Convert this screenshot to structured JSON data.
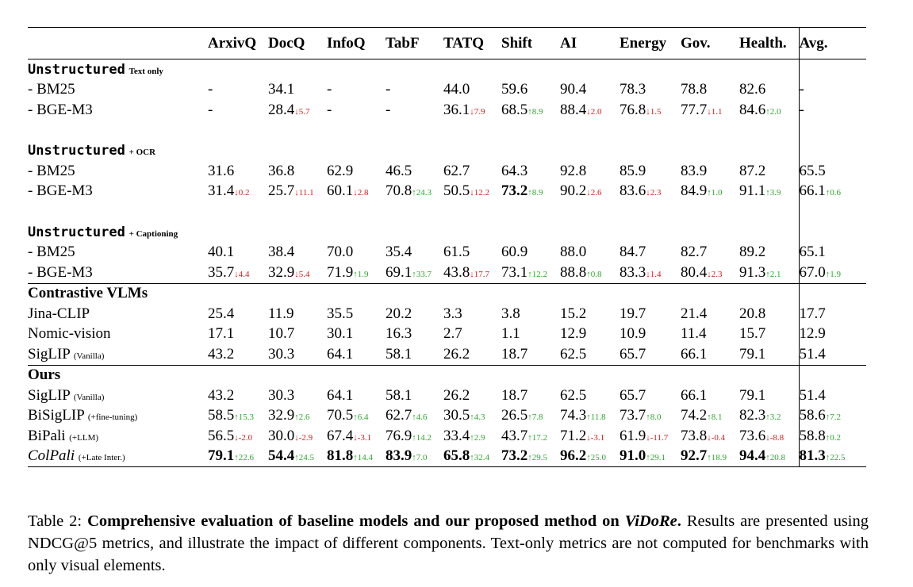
{
  "table": {
    "columns": [
      "ArxivQ",
      "DocQ",
      "InfoQ",
      "TabF",
      "TATQ",
      "Shift",
      "AI",
      "Energy",
      "Gov.",
      "Health.",
      "Avg."
    ],
    "sections": [
      {
        "title": "Unstructured",
        "title_suffix": "Text only",
        "style": "mono",
        "spacer_before": false,
        "rule_before": false,
        "rows": [
          {
            "label": "- BM25",
            "cells": [
              {
                "v": "-"
              },
              {
                "v": "34.1"
              },
              {
                "v": "-"
              },
              {
                "v": "-"
              },
              {
                "v": "44.0"
              },
              {
                "v": "59.6"
              },
              {
                "v": "90.4"
              },
              {
                "v": "78.3"
              },
              {
                "v": "78.8"
              },
              {
                "v": "82.6"
              },
              {
                "v": "-"
              }
            ]
          },
          {
            "label": "- BGE-M3",
            "cells": [
              {
                "v": "-"
              },
              {
                "v": "28.4",
                "d": "↓5.7",
                "t": "dn"
              },
              {
                "v": "-"
              },
              {
                "v": "-"
              },
              {
                "v": "36.1",
                "d": "↓7.9",
                "t": "dn"
              },
              {
                "v": "68.5",
                "d": "↑8.9",
                "t": "up"
              },
              {
                "v": "88.4",
                "d": "↓2.0",
                "t": "dn"
              },
              {
                "v": "76.8",
                "d": "↓1.5",
                "t": "dn"
              },
              {
                "v": "77.7",
                "d": "↓1.1",
                "t": "dn"
              },
              {
                "v": "84.6",
                "d": "↑2.0",
                "t": "up"
              },
              {
                "v": "-"
              }
            ]
          }
        ]
      },
      {
        "title": "Unstructured",
        "title_suffix": "+ OCR",
        "style": "mono",
        "spacer_before": true,
        "rule_before": false,
        "rows": [
          {
            "label": "- BM25",
            "cells": [
              {
                "v": "31.6"
              },
              {
                "v": "36.8"
              },
              {
                "v": "62.9"
              },
              {
                "v": "46.5"
              },
              {
                "v": "62.7"
              },
              {
                "v": "64.3"
              },
              {
                "v": "92.8"
              },
              {
                "v": "85.9"
              },
              {
                "v": "83.9"
              },
              {
                "v": "87.2"
              },
              {
                "v": "65.5"
              }
            ]
          },
          {
            "label": "- BGE-M3",
            "cells": [
              {
                "v": "31.4",
                "d": "↓0.2",
                "t": "dn"
              },
              {
                "v": "25.7",
                "d": "↓11.1",
                "t": "dn"
              },
              {
                "v": "60.1",
                "d": "↓2.8",
                "t": "dn"
              },
              {
                "v": "70.8",
                "d": "↑24.3",
                "t": "up"
              },
              {
                "v": "50.5",
                "d": "↓12.2",
                "t": "dn"
              },
              {
                "v": "73.2",
                "d": "↑8.9",
                "t": "up",
                "b": true
              },
              {
                "v": "90.2",
                "d": "↓2.6",
                "t": "dn"
              },
              {
                "v": "83.6",
                "d": "↓2.3",
                "t": "dn"
              },
              {
                "v": "84.9",
                "d": "↑1.0",
                "t": "up"
              },
              {
                "v": "91.1",
                "d": "↑3.9",
                "t": "up"
              },
              {
                "v": "66.1",
                "d": "↑0.6",
                "t": "up"
              }
            ]
          }
        ]
      },
      {
        "title": "Unstructured",
        "title_suffix": "+ Captioning",
        "style": "mono",
        "spacer_before": true,
        "rule_before": false,
        "rows": [
          {
            "label": "- BM25",
            "cells": [
              {
                "v": "40.1"
              },
              {
                "v": "38.4"
              },
              {
                "v": "70.0"
              },
              {
                "v": "35.4"
              },
              {
                "v": "61.5"
              },
              {
                "v": "60.9"
              },
              {
                "v": "88.0"
              },
              {
                "v": "84.7"
              },
              {
                "v": "82.7"
              },
              {
                "v": "89.2"
              },
              {
                "v": "65.1"
              }
            ]
          },
          {
            "label": "- BGE-M3",
            "cells": [
              {
                "v": "35.7",
                "d": "↓4.4",
                "t": "dn"
              },
              {
                "v": "32.9",
                "d": "↓5.4",
                "t": "dn"
              },
              {
                "v": "71.9",
                "d": "↑1.9",
                "t": "up"
              },
              {
                "v": "69.1",
                "d": "↑33.7",
                "t": "up"
              },
              {
                "v": "43.8",
                "d": "↓17.7",
                "t": "dn"
              },
              {
                "v": "73.1",
                "d": "↑12.2",
                "t": "up"
              },
              {
                "v": "88.8",
                "d": "↑0.8",
                "t": "up"
              },
              {
                "v": "83.3",
                "d": "↓1.4",
                "t": "dn"
              },
              {
                "v": "80.4",
                "d": "↓2.3",
                "t": "dn"
              },
              {
                "v": "91.3",
                "d": "↑2.1",
                "t": "up"
              },
              {
                "v": "67.0",
                "d": "↑1.9",
                "t": "up"
              }
            ]
          }
        ]
      },
      {
        "title": "Contrastive VLMs",
        "title_suffix": "",
        "style": "bold",
        "spacer_before": false,
        "rule_before": true,
        "rows": [
          {
            "label": "Jina-CLIP",
            "cells": [
              {
                "v": "25.4"
              },
              {
                "v": "11.9"
              },
              {
                "v": "35.5"
              },
              {
                "v": "20.2"
              },
              {
                "v": "3.3"
              },
              {
                "v": "3.8"
              },
              {
                "v": "15.2"
              },
              {
                "v": "19.7"
              },
              {
                "v": "21.4"
              },
              {
                "v": "20.8"
              },
              {
                "v": "17.7"
              }
            ]
          },
          {
            "label": "Nomic-vision",
            "cells": [
              {
                "v": "17.1"
              },
              {
                "v": "10.7"
              },
              {
                "v": "30.1"
              },
              {
                "v": "16.3"
              },
              {
                "v": "2.7"
              },
              {
                "v": "1.1"
              },
              {
                "v": "12.9"
              },
              {
                "v": "10.9"
              },
              {
                "v": "11.4"
              },
              {
                "v": "15.7"
              },
              {
                "v": "12.9"
              }
            ]
          },
          {
            "label": "SigLIP",
            "note": "(Vanilla)",
            "cells": [
              {
                "v": "43.2"
              },
              {
                "v": "30.3"
              },
              {
                "v": "64.1"
              },
              {
                "v": "58.1"
              },
              {
                "v": "26.2"
              },
              {
                "v": "18.7"
              },
              {
                "v": "62.5"
              },
              {
                "v": "65.7"
              },
              {
                "v": "66.1"
              },
              {
                "v": "79.1"
              },
              {
                "v": "51.4"
              }
            ]
          }
        ]
      },
      {
        "title": "Ours",
        "title_suffix": "",
        "style": "bold",
        "spacer_before": false,
        "rule_before": true,
        "rows": [
          {
            "label": "SigLIP",
            "note": "(Vanilla)",
            "cells": [
              {
                "v": "43.2"
              },
              {
                "v": "30.3"
              },
              {
                "v": "64.1"
              },
              {
                "v": "58.1"
              },
              {
                "v": "26.2"
              },
              {
                "v": "18.7"
              },
              {
                "v": "62.5"
              },
              {
                "v": "65.7"
              },
              {
                "v": "66.1"
              },
              {
                "v": "79.1"
              },
              {
                "v": "51.4"
              }
            ]
          },
          {
            "label": "BiSigLIP",
            "note": "(+fine-tuning)",
            "cells": [
              {
                "v": "58.5",
                "d": "↑15.3",
                "t": "up"
              },
              {
                "v": "32.9",
                "d": "↑2.6",
                "t": "up"
              },
              {
                "v": "70.5",
                "d": "↑6.4",
                "t": "up"
              },
              {
                "v": "62.7",
                "d": "↑4.6",
                "t": "up"
              },
              {
                "v": "30.5",
                "d": "↑4.3",
                "t": "up"
              },
              {
                "v": "26.5",
                "d": "↑7.8",
                "t": "up"
              },
              {
                "v": "74.3",
                "d": "↑11.8",
                "t": "up"
              },
              {
                "v": "73.7",
                "d": "↑8.0",
                "t": "up"
              },
              {
                "v": "74.2",
                "d": "↑8.1",
                "t": "up"
              },
              {
                "v": "82.3",
                "d": "↑3.2",
                "t": "up"
              },
              {
                "v": "58.6",
                "d": "↑7.2",
                "t": "up"
              }
            ]
          },
          {
            "label": "BiPali",
            "note": "(+LLM)",
            "cells": [
              {
                "v": "56.5",
                "d": "↓-2.0",
                "t": "dn"
              },
              {
                "v": "30.0",
                "d": "↓-2.9",
                "t": "dn"
              },
              {
                "v": "67.4",
                "d": "↓-3.1",
                "t": "dn"
              },
              {
                "v": "76.9",
                "d": "↑14.2",
                "t": "up"
              },
              {
                "v": "33.4",
                "d": "↑2.9",
                "t": "up"
              },
              {
                "v": "43.7",
                "d": "↑17.2",
                "t": "up"
              },
              {
                "v": "71.2",
                "d": "↓-3.1",
                "t": "dn"
              },
              {
                "v": "61.9",
                "d": "↓-11.7",
                "t": "dn"
              },
              {
                "v": "73.8",
                "d": "↓-0.4",
                "t": "dn"
              },
              {
                "v": "73.6",
                "d": "↓-8.8",
                "t": "dn"
              },
              {
                "v": "58.8",
                "d": "↑0.2",
                "t": "up"
              }
            ]
          },
          {
            "label": "ColPali",
            "note": "(+Late Inter.)",
            "italic": true,
            "last": true,
            "cells": [
              {
                "v": "79.1",
                "d": "↑22.6",
                "t": "up",
                "b": true
              },
              {
                "v": "54.4",
                "d": "↑24.5",
                "t": "up",
                "b": true
              },
              {
                "v": "81.8",
                "d": "↑14.4",
                "t": "up",
                "b": true
              },
              {
                "v": "83.9",
                "d": "↑7.0",
                "t": "up",
                "b": true
              },
              {
                "v": "65.8",
                "d": "↑32.4",
                "t": "up",
                "b": true
              },
              {
                "v": "73.2",
                "d": "↑29.5",
                "t": "up",
                "b": true
              },
              {
                "v": "96.2",
                "d": "↑25.0",
                "t": "up",
                "b": true
              },
              {
                "v": "91.0",
                "d": "↑29.1",
                "t": "up",
                "b": true
              },
              {
                "v": "92.7",
                "d": "↑18.9",
                "t": "up",
                "b": true
              },
              {
                "v": "94.4",
                "d": "↑20.8",
                "t": "up",
                "b": true
              },
              {
                "v": "81.3",
                "d": "↑22.5",
                "t": "up",
                "b": true
              }
            ]
          }
        ]
      }
    ]
  },
  "caption": {
    "label": "Table 2:",
    "bold_text": "Comprehensive evaluation of baseline models and our proposed method on",
    "bold_italic": "ViDoRe",
    "bold_end": ".",
    "rest": "Results are presented using NDCG@5 metrics, and illustrate the impact of different components. Text-only metrics are not computed for benchmarks with only visual elements."
  }
}
